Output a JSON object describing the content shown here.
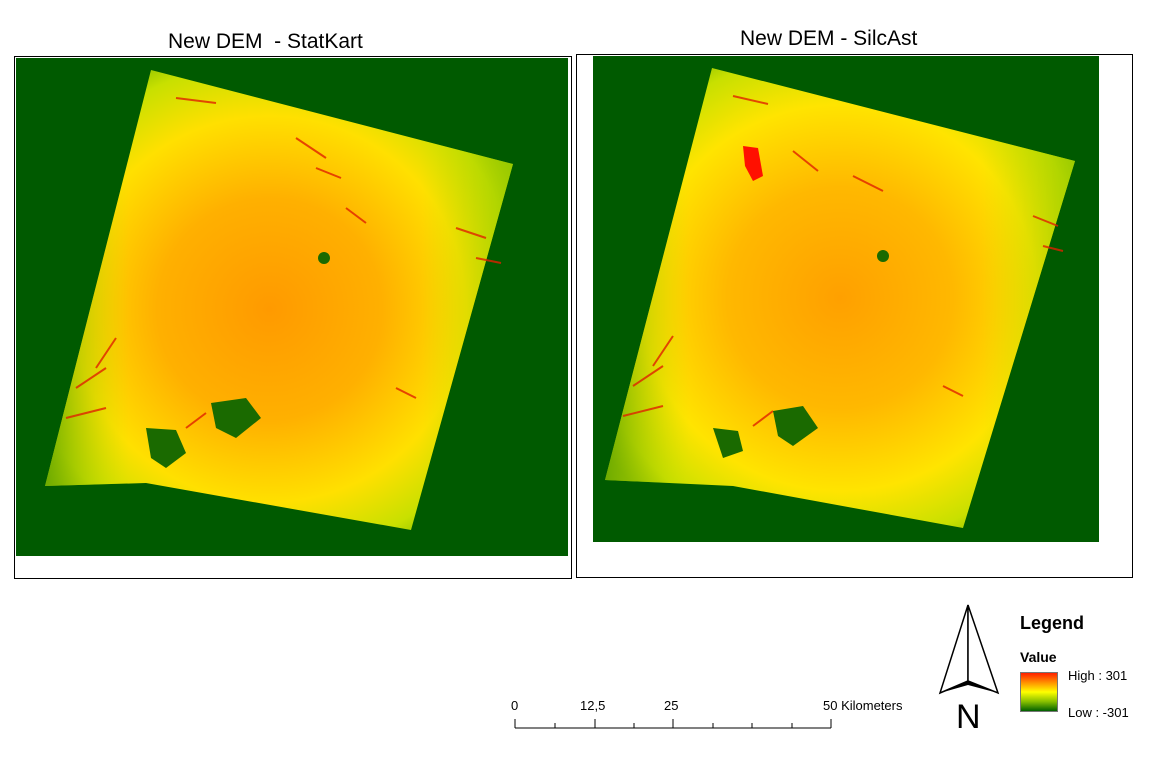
{
  "maps": [
    {
      "title": "New DEM  - StatKart"
    },
    {
      "title": "New DEM - SilcAst"
    }
  ],
  "colors": {
    "nodata": "#005a00",
    "high": "#ff2000",
    "mid_high": "#ff9a00",
    "mid": "#ffff00",
    "mid_low": "#a0c800",
    "low": "#006000"
  },
  "scalebar": {
    "ticks": [
      "0",
      "12,5",
      "25",
      "50 Kilometers"
    ]
  },
  "north_arrow": {
    "label": "N"
  },
  "legend": {
    "title": "Legend",
    "subtitle": "Value",
    "high_label": "High : 301",
    "low_label": "Low : -301"
  }
}
